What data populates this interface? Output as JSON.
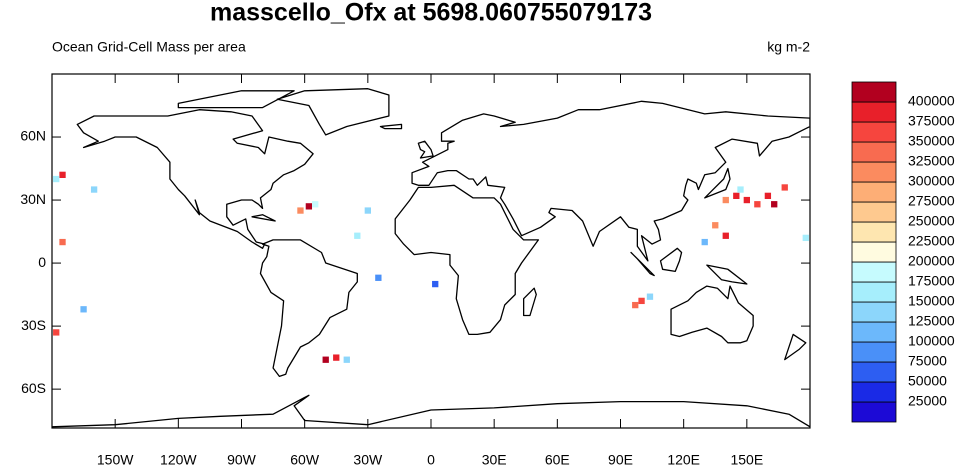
{
  "chart_data": {
    "type": "map",
    "title": "masscello_Ofx at 5698.060755079173",
    "subtitle_left": "Ocean Grid-Cell Mass per area",
    "subtitle_right": "kg m-2",
    "xlim": [
      -180,
      180
    ],
    "ylim": [
      -78.5,
      90
    ],
    "xticks": [
      {
        "value": -150,
        "label": "150W"
      },
      {
        "value": -120,
        "label": "120W"
      },
      {
        "value": -90,
        "label": "90W"
      },
      {
        "value": -60,
        "label": "60W"
      },
      {
        "value": -30,
        "label": "30W"
      },
      0,
      {
        "value": 30,
        "label": "30E"
      },
      {
        "value": 60,
        "label": "60E"
      },
      {
        "value": 90,
        "label": "90E"
      },
      {
        "value": 120,
        "label": "120E"
      },
      {
        "value": 150,
        "label": "150E"
      }
    ],
    "yticks": [
      {
        "value": -60,
        "label": "60S"
      },
      {
        "value": -30,
        "label": "30S"
      },
      0,
      {
        "value": 30,
        "label": "30N"
      },
      {
        "value": 60,
        "label": "60N"
      }
    ],
    "levels": [
      25000,
      50000,
      75000,
      100000,
      125000,
      150000,
      175000,
      200000,
      225000,
      250000,
      275000,
      300000,
      325000,
      350000,
      375000,
      400000
    ],
    "colors": [
      "#1c0ad6",
      "#1a2ae6",
      "#2d5ef2",
      "#4a90f8",
      "#6cb8fb",
      "#8cd6fb",
      "#a6eefc",
      "#c6fbfe",
      "#fffbe0",
      "#fee6b0",
      "#fec98f",
      "#fdae76",
      "#fb8b5f",
      "#f86b50",
      "#f6453e",
      "#e8202a",
      "#b2001f"
    ],
    "x": [
      145,
      150,
      155,
      160,
      163,
      147,
      140,
      135,
      140,
      130,
      168,
      178,
      -58,
      -62,
      -55,
      -30,
      -35,
      -50,
      -45,
      -40,
      100,
      97,
      104,
      -175,
      -178,
      -160,
      -175,
      -165,
      -178,
      -25,
      2
    ],
    "y": [
      32,
      30,
      28,
      32,
      28,
      35,
      30,
      18,
      13,
      10,
      36,
      12,
      27,
      25,
      28,
      25,
      13,
      -46,
      -45,
      -46,
      -18,
      -20,
      -16,
      42,
      40,
      35,
      10,
      -22,
      -33,
      -7,
      -10
    ],
    "values": [
      375000,
      375000,
      350000,
      375000,
      400000,
      150000,
      300000,
      300000,
      375000,
      100000,
      350000,
      150000,
      400000,
      300000,
      175000,
      125000,
      150000,
      400000,
      375000,
      125000,
      350000,
      325000,
      125000,
      375000,
      150000,
      125000,
      325000,
      100000,
      350000,
      75000,
      50000
    ]
  }
}
